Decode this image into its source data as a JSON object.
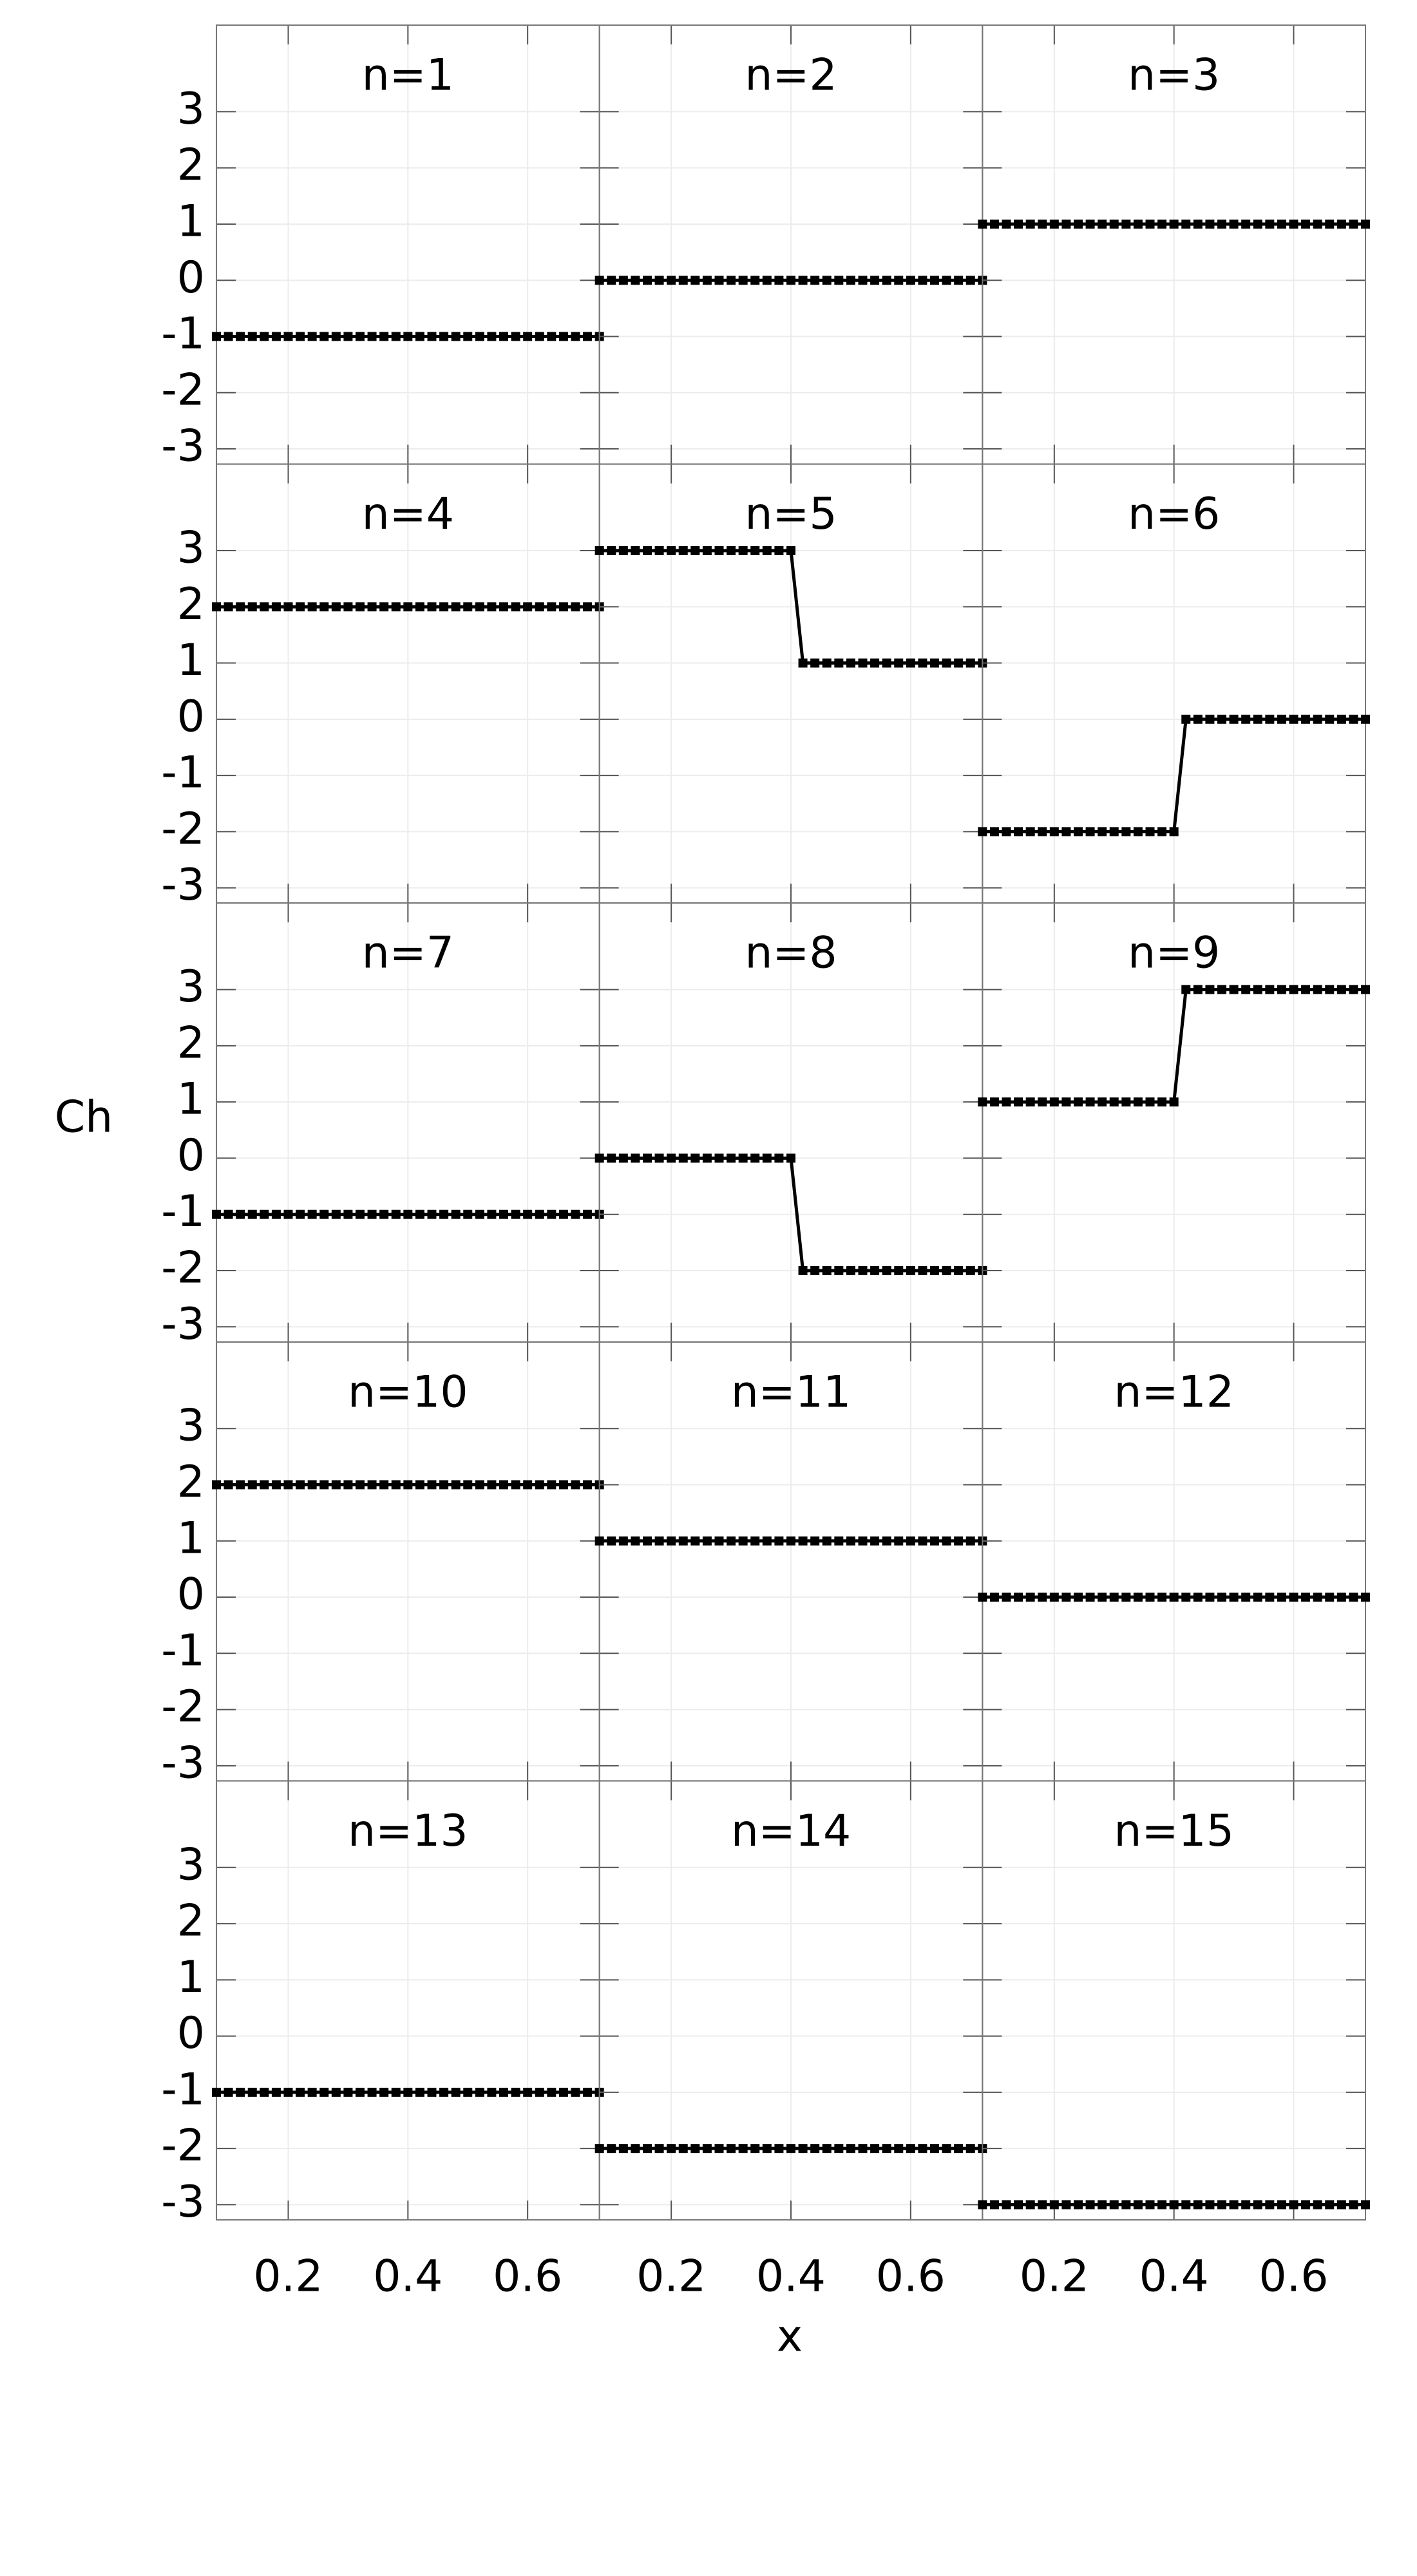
{
  "chart_data": {
    "type": "line",
    "xlabel": "x",
    "ylabel": "Ch",
    "x": [
      0.08,
      0.1,
      0.12,
      0.14,
      0.16,
      0.18,
      0.2,
      0.22,
      0.24,
      0.26,
      0.28,
      0.3,
      0.32,
      0.34,
      0.36,
      0.38,
      0.4,
      0.42,
      0.44,
      0.46,
      0.48,
      0.5,
      0.52,
      0.54,
      0.56,
      0.58,
      0.6,
      0.62,
      0.64,
      0.66,
      0.68,
      0.7,
      0.72
    ],
    "xlim": [
      0.08,
      0.72
    ],
    "xticks": [
      0.2,
      0.4,
      0.6
    ],
    "ylim": [
      -3.27,
      4.54
    ],
    "yticks": [
      -3,
      -2,
      -1,
      0,
      1,
      2,
      3
    ],
    "grid": true,
    "series": [
      {
        "name": "n=1",
        "color": "#000000",
        "values": [
          -1,
          -1,
          -1,
          -1,
          -1,
          -1,
          -1,
          -1,
          -1,
          -1,
          -1,
          -1,
          -1,
          -1,
          -1,
          -1,
          -1,
          -1,
          -1,
          -1,
          -1,
          -1,
          -1,
          -1,
          -1,
          -1,
          -1,
          -1,
          -1,
          -1,
          -1,
          -1,
          -1
        ]
      },
      {
        "name": "n=2",
        "color": "#000000",
        "values": [
          0,
          0,
          0,
          0,
          0,
          0,
          0,
          0,
          0,
          0,
          0,
          0,
          0,
          0,
          0,
          0,
          0,
          0,
          0,
          0,
          0,
          0,
          0,
          0,
          0,
          0,
          0,
          0,
          0,
          0,
          0,
          0,
          0
        ]
      },
      {
        "name": "n=3",
        "color": "#000000",
        "values": [
          1,
          1,
          1,
          1,
          1,
          1,
          1,
          1,
          1,
          1,
          1,
          1,
          1,
          1,
          1,
          1,
          1,
          1,
          1,
          1,
          1,
          1,
          1,
          1,
          1,
          1,
          1,
          1,
          1,
          1,
          1,
          1,
          1
        ]
      },
      {
        "name": "n=4",
        "color": "#000000",
        "values": [
          2,
          2,
          2,
          2,
          2,
          2,
          2,
          2,
          2,
          2,
          2,
          2,
          2,
          2,
          2,
          2,
          2,
          2,
          2,
          2,
          2,
          2,
          2,
          2,
          2,
          2,
          2,
          2,
          2,
          2,
          2,
          2,
          2
        ]
      },
      {
        "name": "n=5",
        "color": "#000000",
        "values": [
          3,
          3,
          3,
          3,
          3,
          3,
          3,
          3,
          3,
          3,
          3,
          3,
          3,
          3,
          3,
          3,
          3,
          1,
          1,
          1,
          1,
          1,
          1,
          1,
          1,
          1,
          1,
          1,
          1,
          1,
          1,
          1,
          1
        ]
      },
      {
        "name": "n=6",
        "color": "#000000",
        "values": [
          -2,
          -2,
          -2,
          -2,
          -2,
          -2,
          -2,
          -2,
          -2,
          -2,
          -2,
          -2,
          -2,
          -2,
          -2,
          -2,
          -2,
          0,
          0,
          0,
          0,
          0,
          0,
          0,
          0,
          0,
          0,
          0,
          0,
          0,
          0,
          0,
          0
        ]
      },
      {
        "name": "n=7",
        "color": "#000000",
        "values": [
          -1,
          -1,
          -1,
          -1,
          -1,
          -1,
          -1,
          -1,
          -1,
          -1,
          -1,
          -1,
          -1,
          -1,
          -1,
          -1,
          -1,
          -1,
          -1,
          -1,
          -1,
          -1,
          -1,
          -1,
          -1,
          -1,
          -1,
          -1,
          -1,
          -1,
          -1,
          -1,
          -1
        ]
      },
      {
        "name": "n=8",
        "color": "#000000",
        "values": [
          0,
          0,
          0,
          0,
          0,
          0,
          0,
          0,
          0,
          0,
          0,
          0,
          0,
          0,
          0,
          0,
          0,
          -2,
          -2,
          -2,
          -2,
          -2,
          -2,
          -2,
          -2,
          -2,
          -2,
          -2,
          -2,
          -2,
          -2,
          -2,
          -2
        ]
      },
      {
        "name": "n=9",
        "color": "#000000",
        "values": [
          1,
          1,
          1,
          1,
          1,
          1,
          1,
          1,
          1,
          1,
          1,
          1,
          1,
          1,
          1,
          1,
          1,
          3,
          3,
          3,
          3,
          3,
          3,
          3,
          3,
          3,
          3,
          3,
          3,
          3,
          3,
          3,
          3
        ]
      },
      {
        "name": "n=10",
        "color": "#000000",
        "values": [
          2,
          2,
          2,
          2,
          2,
          2,
          2,
          2,
          2,
          2,
          2,
          2,
          2,
          2,
          2,
          2,
          2,
          2,
          2,
          2,
          2,
          2,
          2,
          2,
          2,
          2,
          2,
          2,
          2,
          2,
          2,
          2,
          2
        ]
      },
      {
        "name": "n=11",
        "color": "#000000",
        "values": [
          1,
          1,
          1,
          1,
          1,
          1,
          1,
          1,
          1,
          1,
          1,
          1,
          1,
          1,
          1,
          1,
          1,
          1,
          1,
          1,
          1,
          1,
          1,
          1,
          1,
          1,
          1,
          1,
          1,
          1,
          1,
          1,
          1
        ]
      },
      {
        "name": "n=12",
        "color": "#000000",
        "values": [
          0,
          0,
          0,
          0,
          0,
          0,
          0,
          0,
          0,
          0,
          0,
          0,
          0,
          0,
          0,
          0,
          0,
          0,
          0,
          0,
          0,
          0,
          0,
          0,
          0,
          0,
          0,
          0,
          0,
          0,
          0,
          0,
          0
        ]
      },
      {
        "name": "n=13",
        "color": "#000000",
        "values": [
          -1,
          -1,
          -1,
          -1,
          -1,
          -1,
          -1,
          -1,
          -1,
          -1,
          -1,
          -1,
          -1,
          -1,
          -1,
          -1,
          -1,
          -1,
          -1,
          -1,
          -1,
          -1,
          -1,
          -1,
          -1,
          -1,
          -1,
          -1,
          -1,
          -1,
          -1,
          -1,
          -1
        ]
      },
      {
        "name": "n=14",
        "color": "#000000",
        "values": [
          -2,
          -2,
          -2,
          -2,
          -2,
          -2,
          -2,
          -2,
          -2,
          -2,
          -2,
          -2,
          -2,
          -2,
          -2,
          -2,
          -2,
          -2,
          -2,
          -2,
          -2,
          -2,
          -2,
          -2,
          -2,
          -2,
          -2,
          -2,
          -2,
          -2,
          -2,
          -2,
          -2
        ]
      },
      {
        "name": "n=15",
        "color": "#000000",
        "values": [
          -3,
          -3,
          -3,
          -3,
          -3,
          -3,
          -3,
          -3,
          -3,
          -3,
          -3,
          -3,
          -3,
          -3,
          -3,
          -3,
          -3,
          -3,
          -3,
          -3,
          -3,
          -3,
          -3,
          -3,
          -3,
          -3,
          -3,
          -3,
          -3,
          -3,
          -3,
          -3,
          -3
        ]
      }
    ]
  }
}
